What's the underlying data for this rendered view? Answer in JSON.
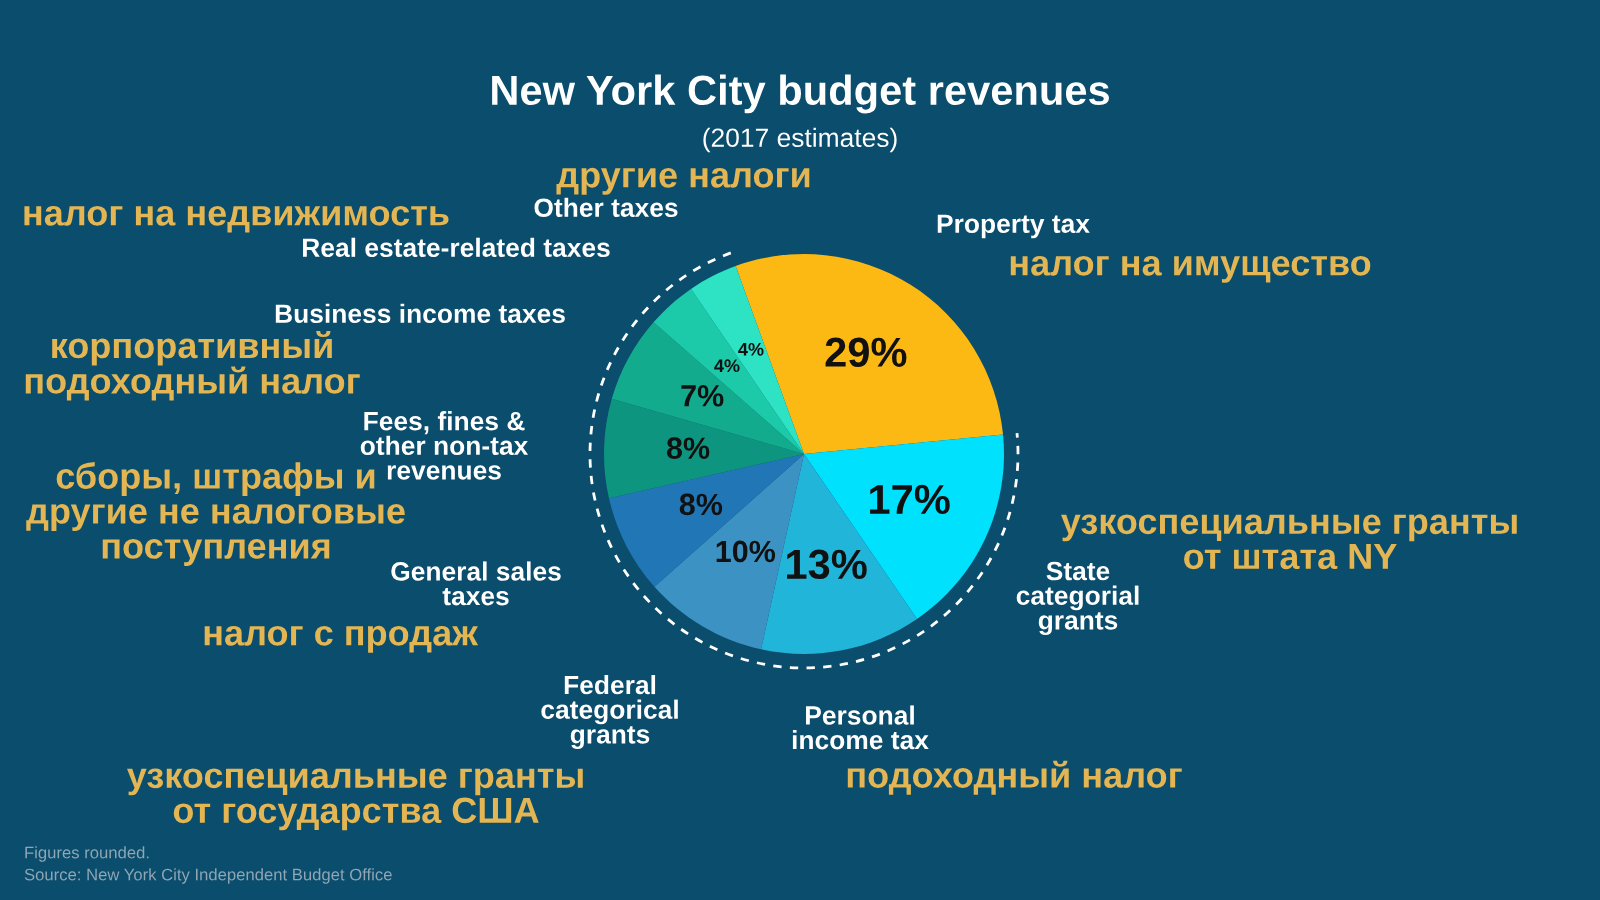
{
  "chart_data": {
    "type": "pie",
    "title": "New York City budget revenues",
    "subtitle": "(2017 estimates)",
    "categories": [
      "Property tax",
      "State\ncategorial\ngrants",
      "Personal\nincome tax",
      "Federal\ncategorical\ngrants",
      "General sales\ntaxes",
      "Fees, fines &\nother non-tax\nrevenues",
      "Business income taxes",
      "Real estate-related taxes",
      "Other taxes"
    ],
    "values": [
      29,
      17,
      13,
      10,
      8,
      8,
      7,
      4,
      4
    ],
    "colors": [
      "#fdb913",
      "#00e1fe",
      "#22b5da",
      "#3b92c3",
      "#2176b6",
      "#0e9580",
      "#13ab8e",
      "#1ccaa9",
      "#2de3c4"
    ],
    "value_labels": [
      "29%",
      "17%",
      "13%",
      "10%",
      "8%",
      "8%",
      "7%",
      "4%",
      "4%"
    ],
    "annotations": [
      "другие налоги",
      "налог на недвижимость",
      "налог на имущество",
      "корпоративный\nподоходный налог",
      "сборы, штрафы и\nдругие не налоговые\nпоступления",
      "узкоспециальные гранты\nот штата NY",
      "налог с продаж",
      "подоходный налог",
      "узкоспециальные гранты\nот государства США",
      "Figures rounded.",
      "Source: New York City Independent Budget Office"
    ]
  }
}
